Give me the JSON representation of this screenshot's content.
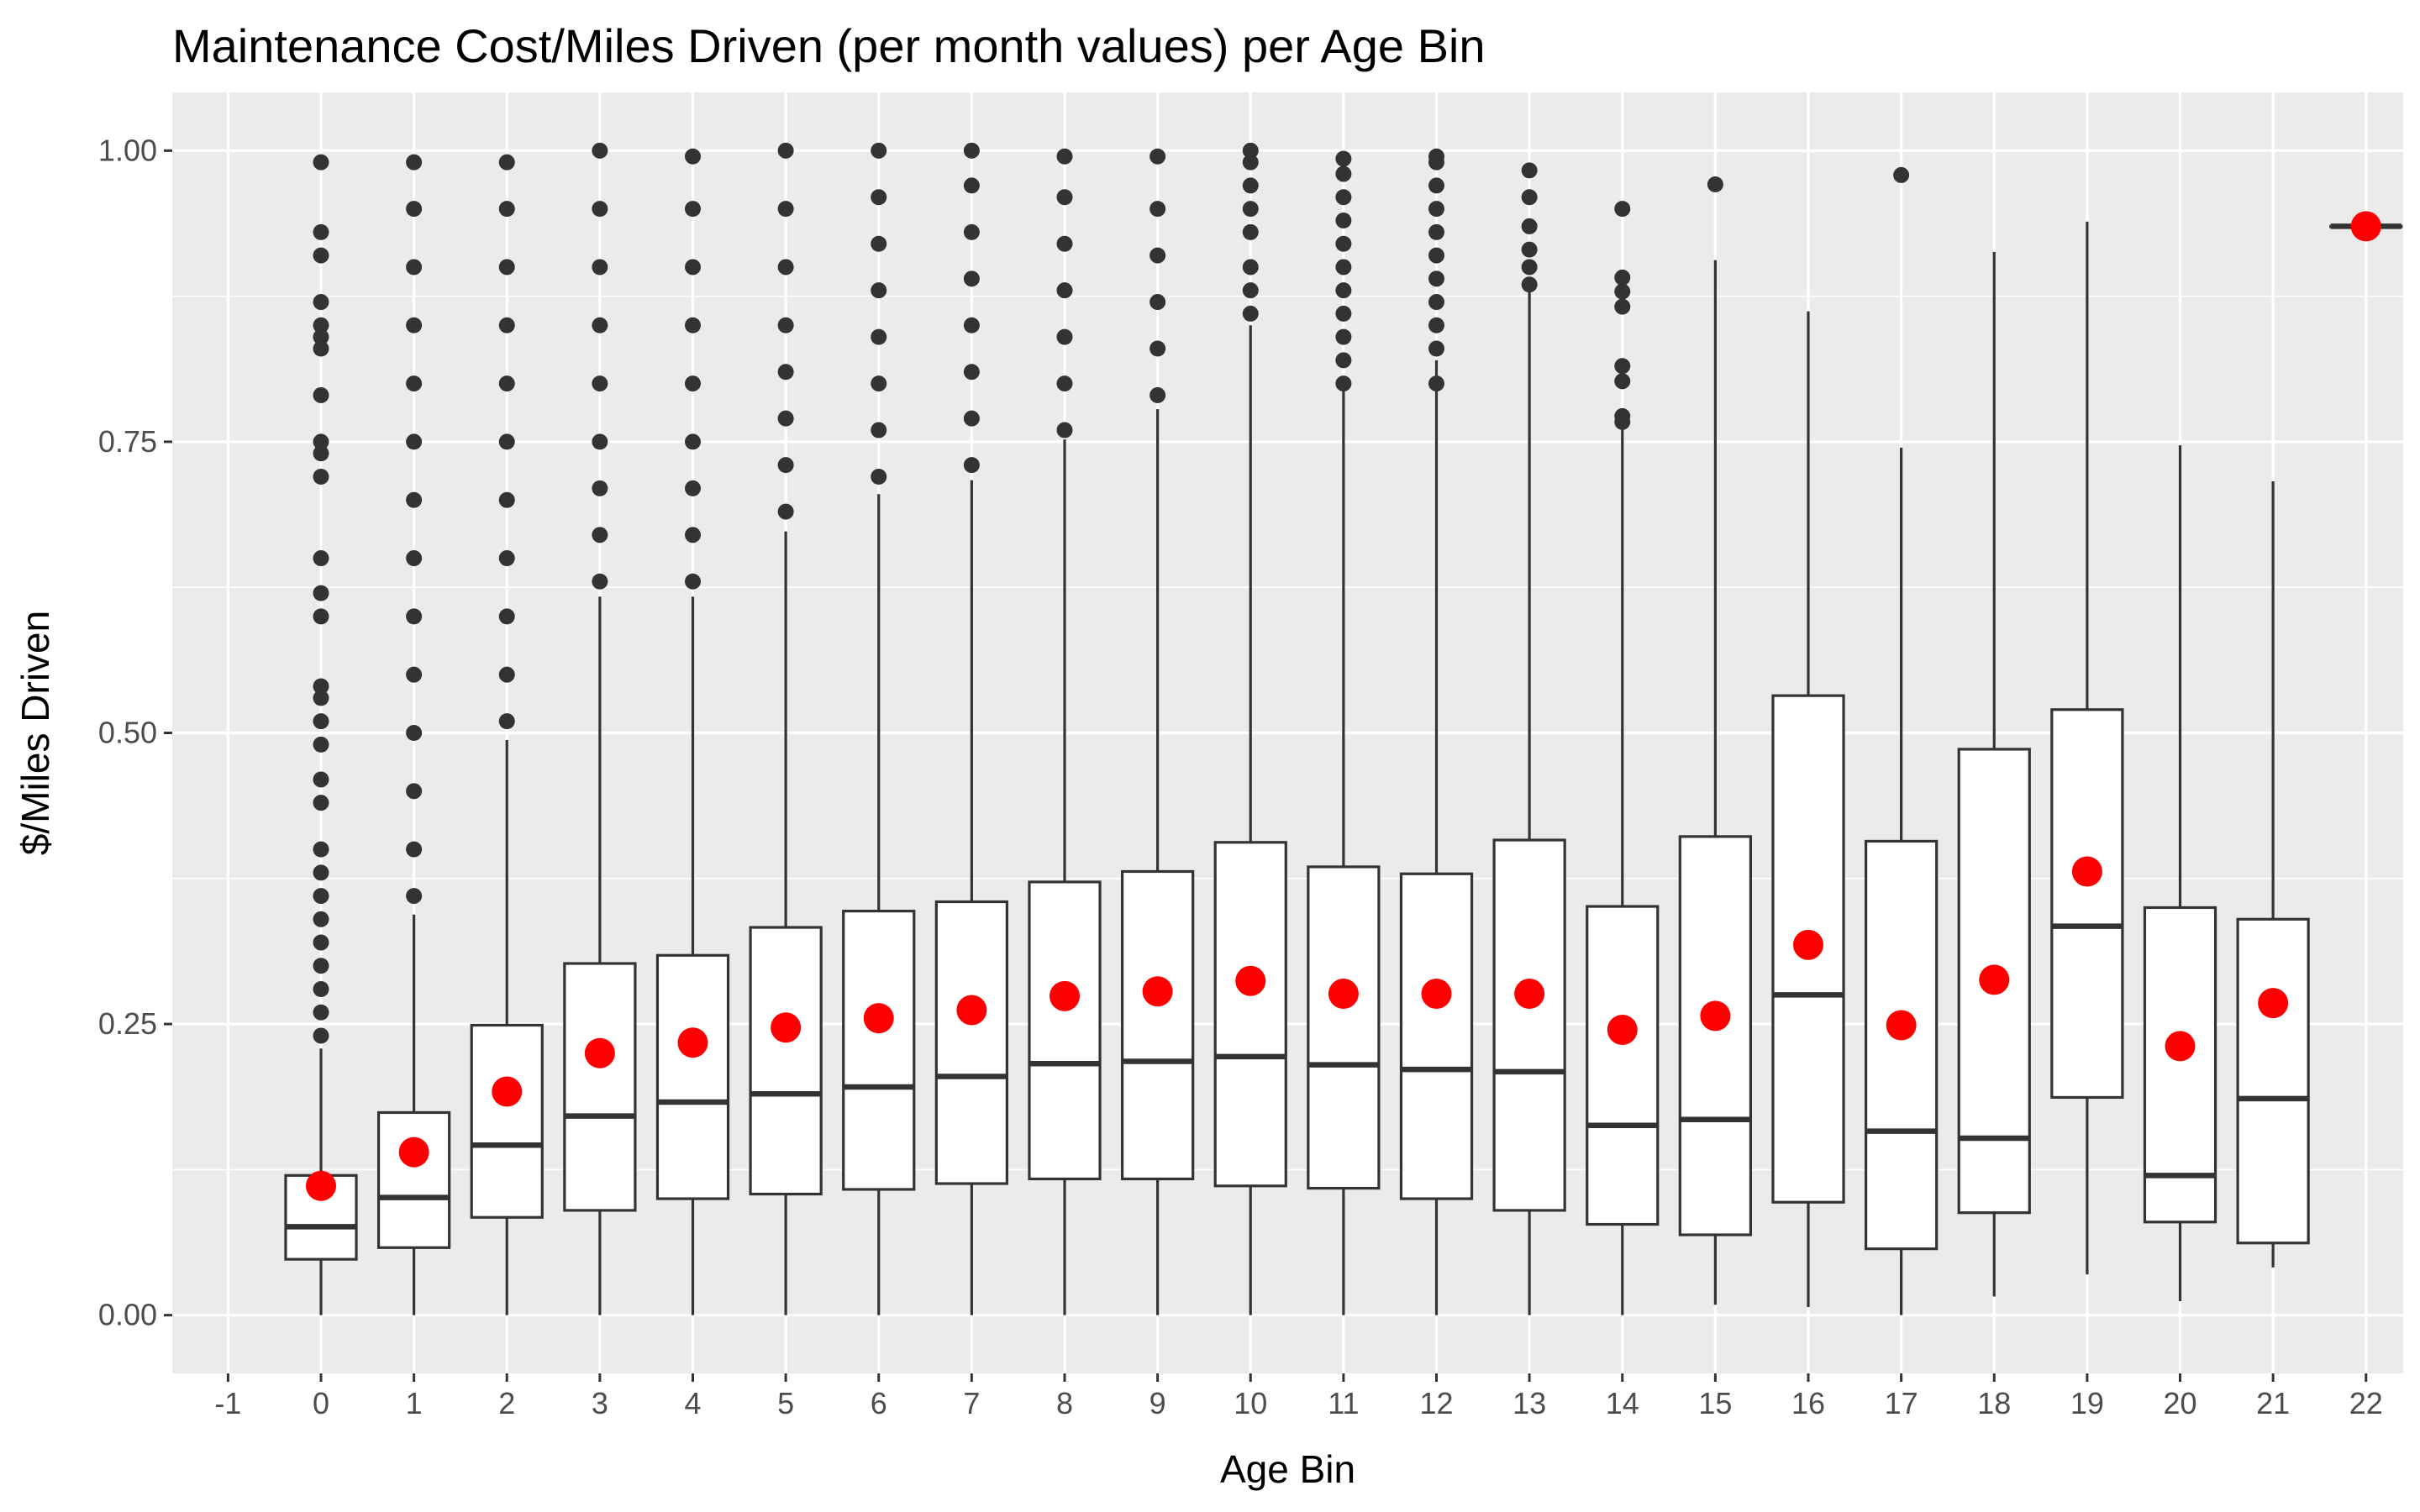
{
  "chart_data": {
    "type": "box",
    "title": "Maintenance Cost/Miles Driven (per month values) per Age Bin",
    "xlabel": "Age Bin",
    "ylabel": "$/Miles Driven",
    "x_ticks": [
      "-1",
      "0",
      "1",
      "2",
      "3",
      "4",
      "5",
      "6",
      "7",
      "8",
      "9",
      "10",
      "11",
      "12",
      "13",
      "14",
      "15",
      "16",
      "17",
      "18",
      "19",
      "20",
      "21",
      "22"
    ],
    "y_ticks": [
      "0.00",
      "0.25",
      "0.50",
      "0.75",
      "1.00"
    ],
    "xlim": [
      -1.6,
      22.4
    ],
    "ylim": [
      -0.05,
      1.05
    ],
    "grid": true,
    "legend": "none",
    "colors": {
      "panel": "#ebebeb",
      "grid": "#ffffff",
      "box_line": "#333333",
      "box_fill": "#ffffff",
      "outlier": "#333333",
      "mean": "#ff0000",
      "tick_text": "#4d4d4d"
    },
    "series": [
      {
        "x": 0,
        "whisker_low": 0.0,
        "q1": 0.048,
        "median": 0.076,
        "q3": 0.12,
        "whisker_high": 0.229,
        "mean": 0.111,
        "outliers": [
          0.24,
          0.26,
          0.28,
          0.3,
          0.32,
          0.34,
          0.36,
          0.38,
          0.4,
          0.44,
          0.46,
          0.49,
          0.51,
          0.53,
          0.54,
          0.6,
          0.62,
          0.65,
          0.72,
          0.74,
          0.75,
          0.79,
          0.83,
          0.84,
          0.85,
          0.87,
          0.91,
          0.93,
          0.99
        ]
      },
      {
        "x": 1,
        "whisker_low": 0.0,
        "q1": 0.058,
        "median": 0.101,
        "q3": 0.174,
        "whisker_high": 0.344,
        "mean": 0.14,
        "outliers": [
          0.36,
          0.4,
          0.45,
          0.5,
          0.55,
          0.6,
          0.65,
          0.7,
          0.75,
          0.8,
          0.85,
          0.9,
          0.95,
          0.99
        ]
      },
      {
        "x": 2,
        "whisker_low": 0.0,
        "q1": 0.084,
        "median": 0.146,
        "q3": 0.249,
        "whisker_high": 0.494,
        "mean": 0.192,
        "outliers": [
          0.51,
          0.55,
          0.6,
          0.65,
          0.7,
          0.75,
          0.8,
          0.85,
          0.9,
          0.95,
          0.99
        ]
      },
      {
        "x": 3,
        "whisker_low": 0.0,
        "q1": 0.09,
        "median": 0.171,
        "q3": 0.302,
        "whisker_high": 0.617,
        "mean": 0.225,
        "outliers": [
          0.63,
          0.67,
          0.71,
          0.75,
          0.8,
          0.85,
          0.9,
          0.95,
          1.0
        ]
      },
      {
        "x": 4,
        "whisker_low": 0.0,
        "q1": 0.1,
        "median": 0.183,
        "q3": 0.309,
        "whisker_high": 0.617,
        "mean": 0.234,
        "outliers": [
          0.63,
          0.67,
          0.71,
          0.75,
          0.8,
          0.85,
          0.9,
          0.95,
          0.995
        ]
      },
      {
        "x": 5,
        "whisker_low": 0.0,
        "q1": 0.104,
        "median": 0.19,
        "q3": 0.333,
        "whisker_high": 0.673,
        "mean": 0.247,
        "outliers": [
          0.69,
          0.73,
          0.77,
          0.81,
          0.85,
          0.9,
          0.95,
          1.0
        ]
      },
      {
        "x": 6,
        "whisker_low": 0.0,
        "q1": 0.108,
        "median": 0.196,
        "q3": 0.347,
        "whisker_high": 0.705,
        "mean": 0.255,
        "outliers": [
          0.72,
          0.76,
          0.8,
          0.84,
          0.88,
          0.92,
          0.96,
          1.0
        ]
      },
      {
        "x": 7,
        "whisker_low": 0.0,
        "q1": 0.113,
        "median": 0.205,
        "q3": 0.355,
        "whisker_high": 0.717,
        "mean": 0.262,
        "outliers": [
          0.73,
          0.77,
          0.81,
          0.85,
          0.89,
          0.93,
          0.97,
          1.0
        ]
      },
      {
        "x": 8,
        "whisker_low": 0.0,
        "q1": 0.117,
        "median": 0.216,
        "q3": 0.372,
        "whisker_high": 0.752,
        "mean": 0.274,
        "outliers": [
          0.76,
          0.8,
          0.84,
          0.88,
          0.92,
          0.96,
          0.995
        ]
      },
      {
        "x": 9,
        "whisker_low": 0.0,
        "q1": 0.117,
        "median": 0.218,
        "q3": 0.381,
        "whisker_high": 0.778,
        "mean": 0.278,
        "outliers": [
          0.79,
          0.83,
          0.87,
          0.91,
          0.95,
          0.995
        ]
      },
      {
        "x": 10,
        "whisker_low": 0.0,
        "q1": 0.111,
        "median": 0.222,
        "q3": 0.406,
        "whisker_high": 0.85,
        "mean": 0.287,
        "outliers": [
          0.86,
          0.88,
          0.9,
          0.93,
          0.95,
          0.97,
          0.99,
          1.0
        ]
      },
      {
        "x": 11,
        "whisker_low": 0.0,
        "q1": 0.109,
        "median": 0.215,
        "q3": 0.385,
        "whisker_high": 0.796,
        "mean": 0.276,
        "outliers": [
          0.8,
          0.82,
          0.84,
          0.86,
          0.88,
          0.9,
          0.92,
          0.94,
          0.96,
          0.98,
          0.993
        ]
      },
      {
        "x": 12,
        "whisker_low": 0.0,
        "q1": 0.1,
        "median": 0.211,
        "q3": 0.379,
        "whisker_high": 0.82,
        "mean": 0.276,
        "outliers": [
          0.8,
          0.83,
          0.85,
          0.87,
          0.89,
          0.91,
          0.93,
          0.95,
          0.97,
          0.99,
          0.995
        ]
      },
      {
        "x": 13,
        "whisker_low": 0.0,
        "q1": 0.09,
        "median": 0.209,
        "q3": 0.408,
        "whisker_high": 0.88,
        "mean": 0.276,
        "outliers": [
          0.885,
          0.9,
          0.915,
          0.935,
          0.96,
          0.983
        ]
      },
      {
        "x": 14,
        "whisker_low": 0.0,
        "q1": 0.078,
        "median": 0.163,
        "q3": 0.351,
        "whisker_high": 0.761,
        "mean": 0.245,
        "outliers": [
          0.767,
          0.772,
          0.802,
          0.815,
          0.866,
          0.879,
          0.891,
          0.95
        ]
      },
      {
        "x": 15,
        "whisker_low": 0.009,
        "q1": 0.069,
        "median": 0.168,
        "q3": 0.411,
        "whisker_high": 0.906,
        "mean": 0.257,
        "outliers": [
          0.971
        ]
      },
      {
        "x": 16,
        "whisker_low": 0.007,
        "q1": 0.097,
        "median": 0.275,
        "q3": 0.532,
        "whisker_high": 0.862,
        "mean": 0.318,
        "outliers": []
      },
      {
        "x": 17,
        "whisker_low": 0.0,
        "q1": 0.057,
        "median": 0.158,
        "q3": 0.407,
        "whisker_high": 0.745,
        "mean": 0.249,
        "outliers": [
          0.979
        ]
      },
      {
        "x": 18,
        "whisker_low": 0.016,
        "q1": 0.088,
        "median": 0.152,
        "q3": 0.486,
        "whisker_high": 0.913,
        "mean": 0.288,
        "outliers": []
      },
      {
        "x": 19,
        "whisker_low": 0.035,
        "q1": 0.187,
        "median": 0.334,
        "q3": 0.52,
        "whisker_high": 0.939,
        "mean": 0.381,
        "outliers": []
      },
      {
        "x": 20,
        "whisker_low": 0.012,
        "q1": 0.08,
        "median": 0.12,
        "q3": 0.35,
        "whisker_high": 0.747,
        "mean": 0.231,
        "outliers": []
      },
      {
        "x": 21,
        "whisker_low": 0.041,
        "q1": 0.062,
        "median": 0.186,
        "q3": 0.34,
        "whisker_high": 0.716,
        "mean": 0.268,
        "outliers": []
      },
      {
        "x": 22,
        "whisker_low": 0.935,
        "q1": 0.935,
        "median": 0.935,
        "q3": 0.935,
        "whisker_high": 0.935,
        "mean": 0.935,
        "outliers": []
      }
    ]
  }
}
